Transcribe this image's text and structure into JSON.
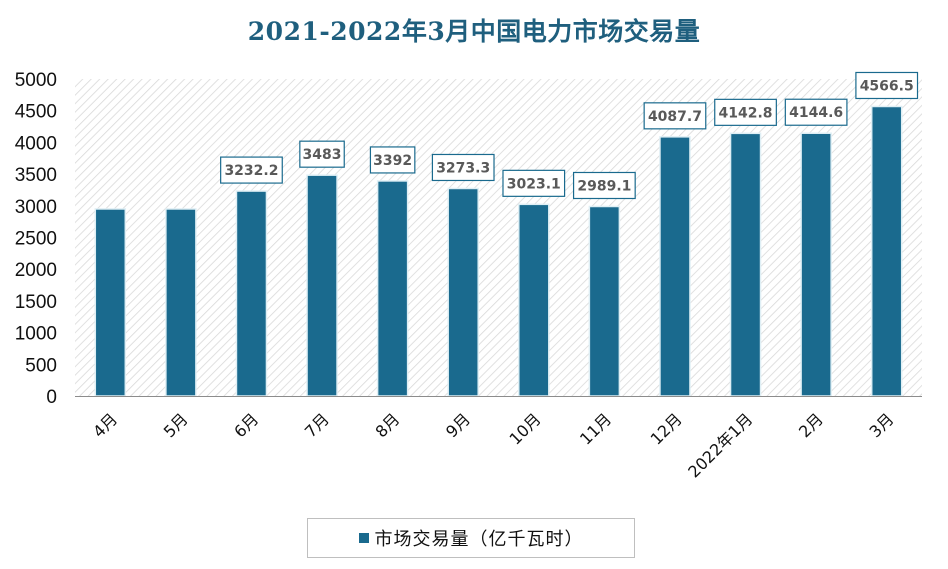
{
  "chart_data": {
    "type": "bar",
    "title": "2021-2022年3月中国电力市场交易量",
    "categories": [
      "4月",
      "5月",
      "6月",
      "7月",
      "8月",
      "9月",
      "10月",
      "11月",
      "12月",
      "2022年1月",
      "2月",
      "3月"
    ],
    "series": [
      {
        "name": "市场交易量（亿千瓦时）",
        "values": [
          2950,
          2950,
          3232.2,
          3483,
          3392,
          3273.3,
          3023.1,
          2989.1,
          4087.7,
          4142.8,
          4144.6,
          4566.5
        ],
        "data_labels": [
          "",
          "",
          "3232.2",
          "3483",
          "3392",
          "3273.3",
          "3023.1",
          "2989.1",
          "4087.7",
          "4142.8",
          "4144.6",
          "4566.5"
        ]
      }
    ],
    "ylim": [
      0,
      5000
    ],
    "yticks": [
      0,
      500,
      1000,
      1500,
      2000,
      2500,
      3000,
      3500,
      4000,
      4500,
      5000
    ],
    "xlabel": "",
    "ylabel": "",
    "legend": "bottom-center",
    "colors": {
      "bar": "#1a6a8e",
      "title": "#1f5f7e",
      "bar_edge": "#dfeff5"
    }
  }
}
